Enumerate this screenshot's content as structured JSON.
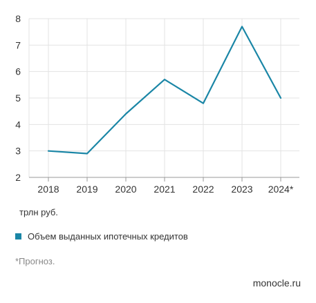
{
  "chart_data": {
    "type": "line",
    "x": [
      "2018",
      "2019",
      "2020",
      "2021",
      "2022",
      "2023",
      "2024*"
    ],
    "series": [
      {
        "name": "Объем выданных ипотечных кредитов",
        "values": [
          3.0,
          2.9,
          4.4,
          5.7,
          4.8,
          7.7,
          5.0
        ]
      }
    ],
    "y_ticks": [
      2,
      3,
      4,
      5,
      6,
      7,
      8
    ],
    "ylim": [
      2,
      8
    ],
    "grid": true,
    "legend_position": "bottom-left",
    "line_color": "#1a86a6",
    "grid_color": "#e3e3e3"
  },
  "unit_label": "трлн руб.",
  "legend": {
    "label": "Объем выданных ипотечных кредитов",
    "color": "#1a86a6"
  },
  "footnote": "*Прогноз.",
  "source": "monocle.ru"
}
